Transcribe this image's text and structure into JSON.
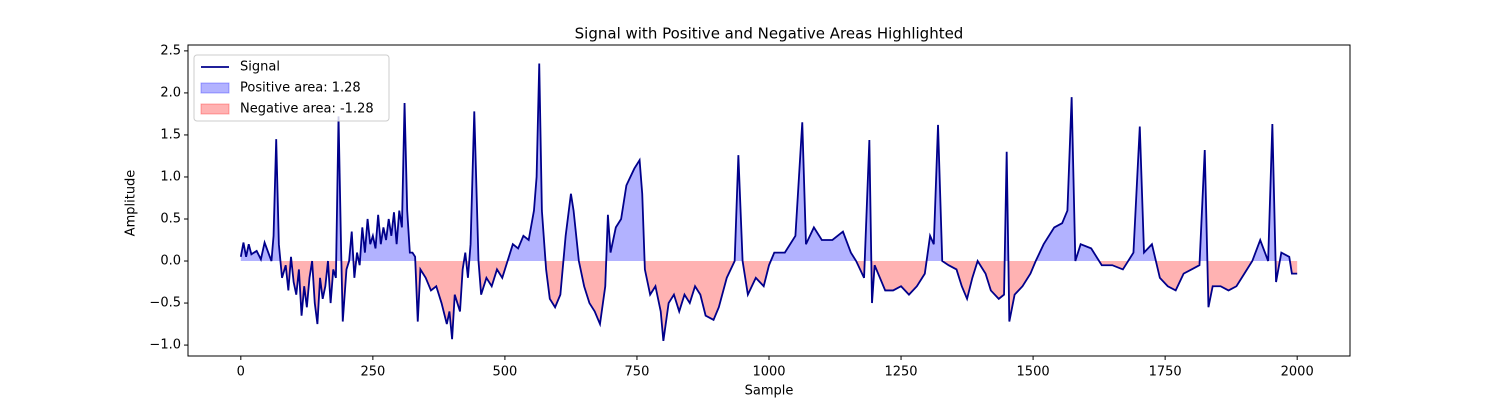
{
  "chart_data": {
    "type": "line",
    "title": "Signal with Positive and Negative Areas Highlighted",
    "xlabel": "Sample",
    "ylabel": "Amplitude",
    "x": [
      0,
      5,
      10,
      15,
      20,
      30,
      38,
      45,
      52,
      58,
      62,
      67,
      72,
      78,
      85,
      90,
      95,
      100,
      105,
      110,
      115,
      120,
      125,
      130,
      135,
      140,
      145,
      150,
      155,
      160,
      165,
      170,
      175,
      180,
      185,
      190,
      193,
      200,
      205,
      210,
      215,
      220,
      225,
      230,
      235,
      240,
      245,
      250,
      255,
      260,
      265,
      270,
      275,
      280,
      285,
      290,
      295,
      300,
      305,
      310,
      315,
      320,
      325,
      330,
      335,
      340,
      350,
      360,
      370,
      380,
      390,
      395,
      400,
      405,
      410,
      415,
      420,
      425,
      430,
      435,
      442,
      450,
      455,
      465,
      475,
      485,
      495,
      505,
      515,
      525,
      535,
      545,
      555,
      560,
      565,
      570,
      578,
      585,
      595,
      605,
      615,
      625,
      630,
      640,
      650,
      660,
      670,
      680,
      690,
      695,
      700,
      710,
      720,
      730,
      745,
      755,
      760,
      765,
      775,
      785,
      795,
      800,
      810,
      820,
      830,
      840,
      850,
      860,
      870,
      880,
      895,
      905,
      920,
      935,
      942,
      950,
      960,
      975,
      990,
      1000,
      1010,
      1030,
      1050,
      1063,
      1070,
      1085,
      1100,
      1120,
      1140,
      1155,
      1165,
      1180,
      1190,
      1195,
      1200,
      1210,
      1220,
      1235,
      1250,
      1265,
      1280,
      1295,
      1305,
      1312,
      1320,
      1328,
      1340,
      1355,
      1365,
      1375,
      1385,
      1395,
      1410,
      1420,
      1435,
      1445,
      1450,
      1455,
      1465,
      1480,
      1495,
      1505,
      1520,
      1540,
      1555,
      1565,
      1573,
      1580,
      1590,
      1610,
      1630,
      1650,
      1670,
      1690,
      1702,
      1710,
      1725,
      1740,
      1755,
      1770,
      1785,
      1800,
      1815,
      1825,
      1832,
      1840,
      1855,
      1870,
      1885,
      1900,
      1915,
      1930,
      1945,
      1953,
      1960,
      1970,
      1985,
      1990,
      2000
    ],
    "series": [
      {
        "name": "Signal",
        "color": "#00008b",
        "values": [
          0.05,
          0.22,
          0.05,
          0.2,
          0.08,
          0.12,
          0.02,
          0.22,
          0.1,
          0.0,
          0.3,
          1.45,
          0.2,
          -0.2,
          -0.05,
          -0.35,
          0.05,
          -0.25,
          -0.4,
          -0.1,
          -0.65,
          -0.3,
          -0.55,
          -0.2,
          0.0,
          -0.5,
          -0.75,
          -0.2,
          -0.45,
          -0.3,
          0.0,
          -0.5,
          -0.1,
          -0.2,
          1.72,
          0.1,
          -0.72,
          -0.1,
          0.0,
          0.35,
          -0.2,
          0.1,
          -0.05,
          0.4,
          0.1,
          0.5,
          0.2,
          0.3,
          0.15,
          0.55,
          0.2,
          0.4,
          0.25,
          0.5,
          0.3,
          0.58,
          0.2,
          0.6,
          0.4,
          1.88,
          0.6,
          0.1,
          0.1,
          0.05,
          -0.72,
          -0.1,
          -0.2,
          -0.35,
          -0.3,
          -0.5,
          -0.75,
          -0.6,
          -0.93,
          -0.4,
          -0.5,
          -0.6,
          -0.1,
          0.1,
          -0.2,
          0.2,
          1.78,
          0.0,
          -0.4,
          -0.2,
          -0.3,
          -0.1,
          -0.2,
          0.0,
          0.2,
          0.15,
          0.3,
          0.25,
          0.6,
          1.0,
          2.35,
          0.6,
          -0.1,
          -0.45,
          -0.55,
          -0.4,
          0.3,
          0.8,
          0.6,
          0.0,
          -0.3,
          -0.5,
          -0.6,
          -0.75,
          -0.3,
          0.55,
          0.1,
          0.4,
          0.5,
          0.9,
          1.1,
          1.2,
          0.8,
          -0.1,
          -0.4,
          -0.3,
          -0.6,
          -0.95,
          -0.5,
          -0.4,
          -0.6,
          -0.4,
          -0.5,
          -0.3,
          -0.4,
          -0.65,
          -0.7,
          -0.55,
          -0.2,
          0.0,
          1.26,
          0.0,
          -0.4,
          -0.2,
          -0.3,
          -0.05,
          0.1,
          0.1,
          0.3,
          1.65,
          0.2,
          0.4,
          0.25,
          0.25,
          0.35,
          0.1,
          0.0,
          -0.2,
          1.44,
          -0.5,
          -0.05,
          -0.2,
          -0.35,
          -0.35,
          -0.3,
          -0.4,
          -0.3,
          -0.15,
          0.3,
          0.2,
          1.62,
          0.0,
          -0.05,
          -0.1,
          -0.3,
          -0.45,
          -0.2,
          0.0,
          -0.15,
          -0.35,
          -0.45,
          -0.4,
          1.3,
          -0.72,
          -0.4,
          -0.3,
          -0.15,
          0.0,
          0.2,
          0.4,
          0.45,
          0.6,
          1.95,
          0.0,
          0.2,
          0.15,
          -0.05,
          -0.05,
          -0.1,
          0.1,
          1.6,
          0.1,
          0.2,
          -0.2,
          -0.3,
          -0.35,
          -0.15,
          -0.1,
          -0.05,
          1.32,
          -0.55,
          -0.3,
          -0.3,
          -0.35,
          -0.3,
          -0.15,
          0.0,
          0.25,
          0.0,
          1.63,
          -0.25,
          0.1,
          0.05,
          -0.15,
          -0.15
        ]
      }
    ],
    "areas": [
      {
        "name": "Positive area: 1.28",
        "color": "#0000ff",
        "opacity": 0.3,
        "side": "positive"
      },
      {
        "name": "Negative area: -1.28",
        "color": "#ff0000",
        "opacity": 0.3,
        "side": "negative"
      }
    ],
    "xlim": [
      -100,
      2100
    ],
    "ylim": [
      -1.13,
      2.57
    ],
    "xticks": [
      0,
      250,
      500,
      750,
      1000,
      1250,
      1500,
      1750,
      2000
    ],
    "yticks": [
      {
        "value": -1.0,
        "label": "−1.0"
      },
      {
        "value": -0.5,
        "label": "−0.5"
      },
      {
        "value": 0.0,
        "label": "0.0"
      },
      {
        "value": 0.5,
        "label": "0.5"
      },
      {
        "value": 1.0,
        "label": "1.0"
      },
      {
        "value": 1.5,
        "label": "1.5"
      },
      {
        "value": 2.0,
        "label": "2.0"
      },
      {
        "value": 2.5,
        "label": "2.5"
      }
    ],
    "legend": "upper left",
    "grid": false
  }
}
